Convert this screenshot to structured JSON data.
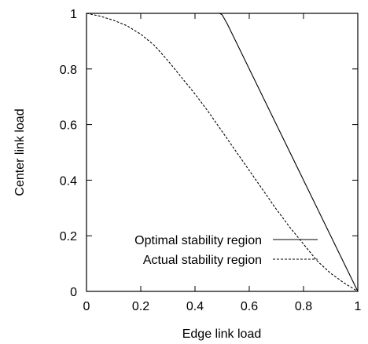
{
  "chart_data": {
    "type": "line",
    "title": "",
    "xlabel": "Edge link load",
    "ylabel": "Center link load",
    "xlim": [
      0,
      1
    ],
    "ylim": [
      0,
      1
    ],
    "x_ticks": [
      "0",
      "0.2",
      "0.4",
      "0.6",
      "0.8",
      "1"
    ],
    "y_ticks": [
      "0",
      "0.2",
      "0.4",
      "0.6",
      "0.8",
      "1"
    ],
    "grid": false,
    "legend_position": "bottom-right",
    "series": [
      {
        "name": "Optimal stability region",
        "line_style": "solid",
        "points": [
          [
            0,
            1
          ],
          [
            0.49,
            1
          ],
          [
            0.5,
            0.995
          ],
          [
            0.52,
            0.96
          ],
          [
            1,
            0
          ]
        ]
      },
      {
        "name": "Actual stability region",
        "line_style": "dashed",
        "points": [
          [
            0,
            1
          ],
          [
            0.05,
            0.99
          ],
          [
            0.1,
            0.975
          ],
          [
            0.15,
            0.955
          ],
          [
            0.2,
            0.925
          ],
          [
            0.25,
            0.885
          ],
          [
            0.3,
            0.83
          ],
          [
            0.35,
            0.77
          ],
          [
            0.4,
            0.71
          ],
          [
            0.45,
            0.645
          ],
          [
            0.5,
            0.575
          ],
          [
            0.55,
            0.505
          ],
          [
            0.6,
            0.435
          ],
          [
            0.65,
            0.365
          ],
          [
            0.7,
            0.295
          ],
          [
            0.75,
            0.23
          ],
          [
            0.8,
            0.17
          ],
          [
            0.85,
            0.11
          ],
          [
            0.9,
            0.065
          ],
          [
            0.95,
            0.03
          ],
          [
            1,
            0
          ]
        ]
      }
    ]
  }
}
